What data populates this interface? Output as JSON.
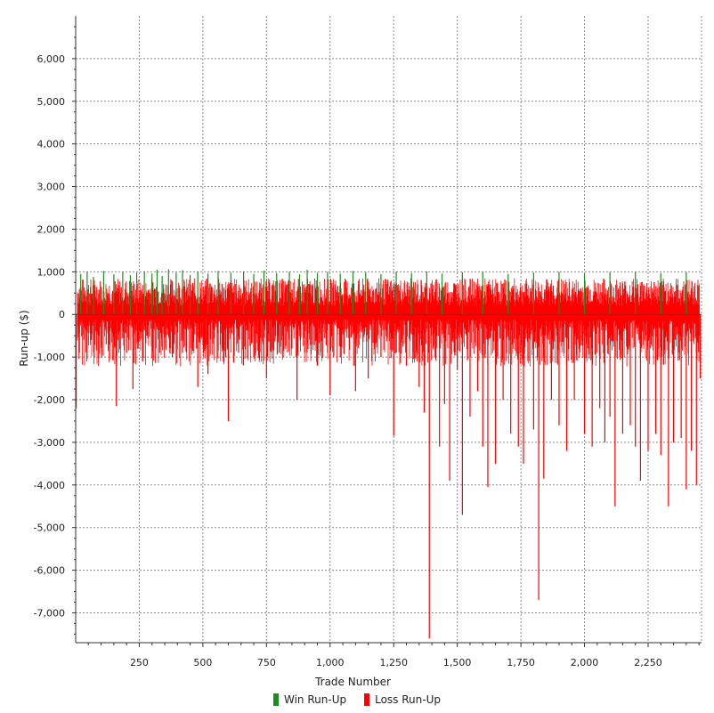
{
  "chart_data": {
    "type": "bar",
    "xlabel": "Trade Number",
    "ylabel": "Run-up ($)",
    "xlim": [
      0,
      2460
    ],
    "ylim": [
      -7700,
      7000
    ],
    "x_ticks": [
      250,
      500,
      750,
      1000,
      1250,
      1500,
      1750,
      2000,
      2250
    ],
    "x_tick_labels": [
      "250",
      "500",
      "750",
      "1,000",
      "1,250",
      "1,500",
      "1,750",
      "2,000",
      "2,250"
    ],
    "y_ticks": [
      6000,
      5000,
      4000,
      3000,
      2000,
      1000,
      0,
      -1000,
      -2000,
      -3000,
      -4000,
      -5000,
      -6000,
      -7000
    ],
    "y_tick_labels": [
      "6,000",
      "5,000",
      "4,000",
      "3,000",
      "2,000",
      "1,000",
      "0",
      "-1,000",
      "-2,000",
      "-3,000",
      "-4,000",
      "-5,000",
      "-6,000",
      "-7,000"
    ],
    "grid": true,
    "legend_position": "bottom-center",
    "series": [
      {
        "name": "Win Run-Up",
        "color": "#1f8a1f",
        "points": [
          [
            20,
            950
          ],
          [
            45,
            1000
          ],
          [
            70,
            880
          ],
          [
            110,
            1020
          ],
          [
            150,
            940
          ],
          [
            185,
            1000
          ],
          [
            215,
            920
          ],
          [
            240,
            980
          ],
          [
            270,
            1010
          ],
          [
            300,
            960
          ],
          [
            320,
            1050
          ],
          [
            340,
            900
          ],
          [
            365,
            1060
          ],
          [
            395,
            980
          ],
          [
            420,
            1040
          ],
          [
            450,
            930
          ],
          [
            480,
            1000
          ],
          [
            520,
            960
          ],
          [
            560,
            1020
          ],
          [
            610,
            980
          ],
          [
            660,
            1010
          ],
          [
            700,
            950
          ],
          [
            740,
            1030
          ],
          [
            790,
            970
          ],
          [
            840,
            1000
          ],
          [
            880,
            940
          ],
          [
            910,
            1050
          ],
          [
            950,
            980
          ],
          [
            990,
            1000
          ],
          [
            1040,
            960
          ],
          [
            1090,
            1020
          ],
          [
            1140,
            990
          ],
          [
            1200,
            950
          ],
          [
            1260,
            1000
          ],
          [
            1320,
            970
          ],
          [
            1380,
            1010
          ],
          [
            1440,
            960
          ],
          [
            1520,
            990
          ],
          [
            1600,
            1000
          ],
          [
            1700,
            950
          ],
          [
            1800,
            980
          ],
          [
            1900,
            1000
          ],
          [
            2000,
            960
          ],
          [
            2100,
            990
          ],
          [
            2200,
            1000
          ],
          [
            2300,
            970
          ],
          [
            2400,
            990
          ]
        ]
      },
      {
        "name": "Loss Run-Up",
        "color": "#ff0000",
        "points": [
          [
            2,
            -2200
          ],
          [
            60,
            -600
          ],
          [
            120,
            -700
          ],
          [
            160,
            -2150
          ],
          [
            200,
            -900
          ],
          [
            225,
            -1750
          ],
          [
            280,
            -500
          ],
          [
            330,
            -900
          ],
          [
            380,
            -1000
          ],
          [
            420,
            -900
          ],
          [
            475,
            -800
          ],
          [
            480,
            -1700
          ],
          [
            520,
            -1400
          ],
          [
            560,
            -850
          ],
          [
            590,
            -1000
          ],
          [
            600,
            -2500
          ],
          [
            640,
            -900
          ],
          [
            700,
            -1000
          ],
          [
            750,
            -1500
          ],
          [
            800,
            -900
          ],
          [
            850,
            -800
          ],
          [
            870,
            -2000
          ],
          [
            900,
            -900
          ],
          [
            950,
            -1200
          ],
          [
            990,
            -900
          ],
          [
            1000,
            -1900
          ],
          [
            1040,
            -1000
          ],
          [
            1100,
            -1800
          ],
          [
            1150,
            -1500
          ],
          [
            1200,
            -1000
          ],
          [
            1250,
            -2850
          ],
          [
            1300,
            -1200
          ],
          [
            1350,
            -1700
          ],
          [
            1370,
            -2300
          ],
          [
            1390,
            -7600
          ],
          [
            1430,
            -3100
          ],
          [
            1450,
            -2100
          ],
          [
            1470,
            -3900
          ],
          [
            1500,
            -1300
          ],
          [
            1520,
            -4700
          ],
          [
            1550,
            -2400
          ],
          [
            1580,
            -1800
          ],
          [
            1600,
            -3100
          ],
          [
            1620,
            -4050
          ],
          [
            1650,
            -3500
          ],
          [
            1680,
            -2000
          ],
          [
            1710,
            -2800
          ],
          [
            1740,
            -3100
          ],
          [
            1760,
            -3500
          ],
          [
            1800,
            -2700
          ],
          [
            1820,
            -6700
          ],
          [
            1840,
            -3850
          ],
          [
            1870,
            -2000
          ],
          [
            1900,
            -2600
          ],
          [
            1930,
            -3200
          ],
          [
            1960,
            -2000
          ],
          [
            2000,
            -2800
          ],
          [
            2030,
            -3100
          ],
          [
            2060,
            -2200
          ],
          [
            2080,
            -3000
          ],
          [
            2100,
            -2400
          ],
          [
            2120,
            -4500
          ],
          [
            2150,
            -2800
          ],
          [
            2180,
            -2600
          ],
          [
            2200,
            -3100
          ],
          [
            2220,
            -3900
          ],
          [
            2250,
            -3200
          ],
          [
            2280,
            -2800
          ],
          [
            2300,
            -3300
          ],
          [
            2330,
            -4500
          ],
          [
            2350,
            -3000
          ],
          [
            2380,
            -2900
          ],
          [
            2400,
            -4100
          ],
          [
            2420,
            -3200
          ],
          [
            2440,
            -4000
          ],
          [
            2455,
            -1500
          ]
        ]
      }
    ]
  }
}
